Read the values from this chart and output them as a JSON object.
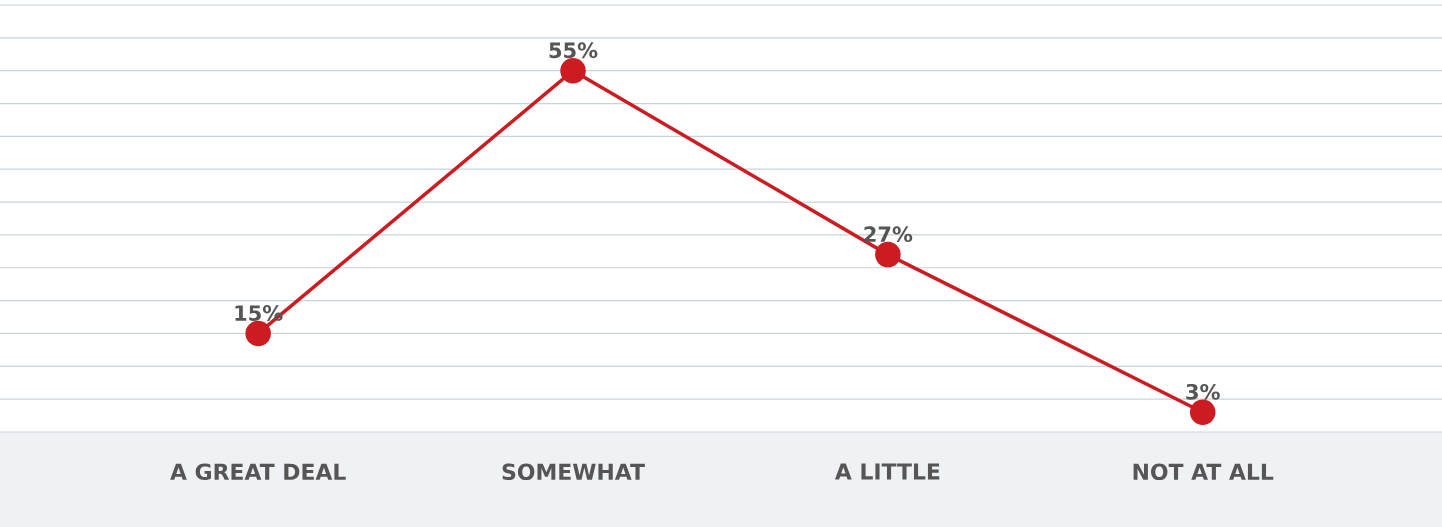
{
  "chart_data": {
    "type": "line",
    "categories": [
      "A GREAT DEAL",
      "SOMEWHAT",
      "A LITTLE",
      "NOT AT ALL"
    ],
    "series": [
      {
        "color": "#cc1c22",
        "values": [
          15,
          55,
          27,
          3
        ],
        "value_labels": [
          "15%",
          "55%",
          "27%",
          "3%"
        ]
      }
    ],
    "ylim": [
      0,
      65
    ],
    "yticks": [
      {
        "value": 0,
        "label": null
      },
      {
        "value": 5,
        "label": null
      },
      {
        "value": 10,
        "label": null
      },
      {
        "value": 15,
        "label": null
      },
      {
        "value": 20,
        "label": null
      },
      {
        "value": 25,
        "label": null
      },
      {
        "value": 30,
        "label": null
      },
      {
        "value": 35,
        "label": null
      },
      {
        "value": 40,
        "label": null
      },
      {
        "value": 45,
        "label": null
      },
      {
        "value": 50,
        "label": null
      },
      {
        "value": 55,
        "label": null
      },
      {
        "value": 60,
        "label": null
      },
      {
        "value": 65,
        "label": null
      }
    ],
    "grid": "y",
    "tick_labels": "x",
    "marker": "circle",
    "line_style": "solid",
    "legend": false
  }
}
